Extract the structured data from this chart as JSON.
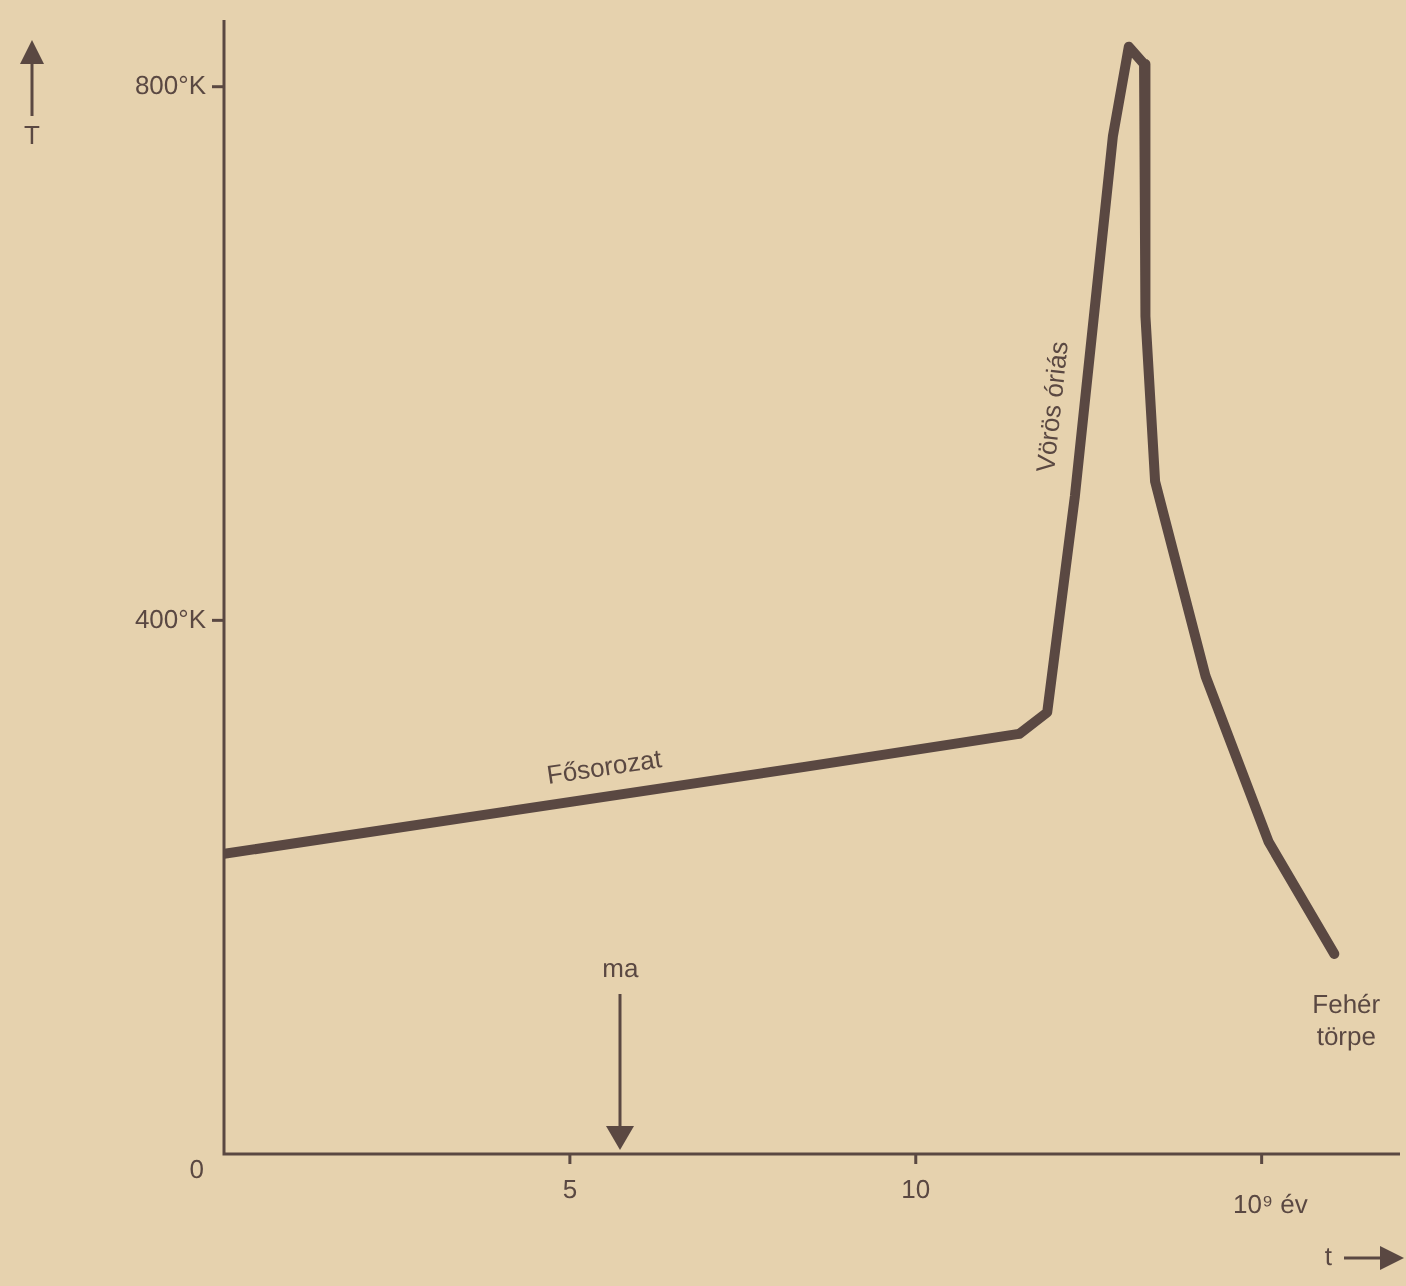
{
  "chart_data": {
    "type": "line",
    "xlabel": "t",
    "ylabel": "T",
    "color": "#5a4842",
    "x": [
      0,
      8.37,
      11.5,
      11.9,
      12.3,
      12.85,
      13.08,
      13.3,
      13.32,
      13.46,
      14.19,
      15.1,
      16.05
    ],
    "values": [
      225,
      290,
      315,
      331,
      493,
      763,
      830,
      817,
      628,
      504,
      358,
      234,
      150
    ],
    "xlim": [
      0,
      17
    ],
    "xticks": [
      5,
      10,
      {
        "value": 15,
        "label": null
      }
    ],
    "ylim": [
      0,
      850
    ],
    "yticks": [
      {
        "value": 0,
        "label": "0"
      },
      {
        "value": 400,
        "label": "400°K"
      },
      {
        "value": 800,
        "label": "800°K"
      }
    ],
    "grid": false,
    "legend": false,
    "marker": "none",
    "line_style": "solid",
    "annotations": [
      {
        "text": "Fősorozat",
        "x": 5.5,
        "y": 268
      },
      {
        "text": "Vörös óriás",
        "x": 12.4,
        "y": 560
      },
      {
        "text": "Fehér törpe",
        "x": 16.05,
        "y": 150
      },
      "ma",
      "10⁹ év"
    ]
  }
}
